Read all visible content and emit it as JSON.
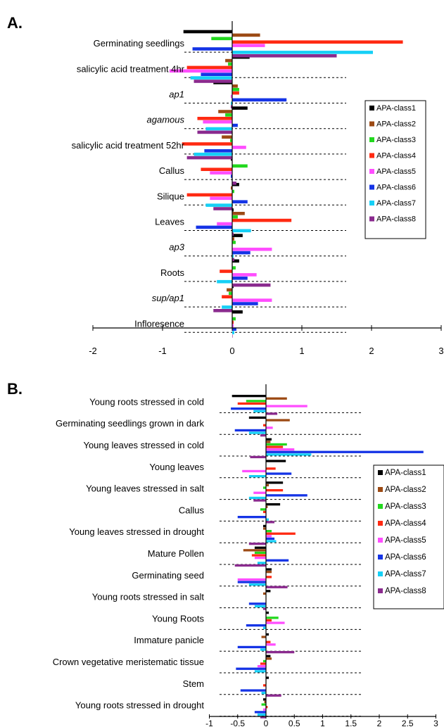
{
  "series_colors": [
    "#000000",
    "#9c4a14",
    "#22d81e",
    "#ff2a12",
    "#ff4dff",
    "#1534e6",
    "#16d0f6",
    "#8a2a8e"
  ],
  "chart_data": [
    {
      "panel_label": "A.",
      "type": "bar",
      "orientation": "horizontal",
      "xlim": [
        -2,
        3
      ],
      "xticks": [
        "-2",
        "-1",
        "0",
        "1",
        "2",
        "3"
      ],
      "grid": false,
      "legend_position": "right",
      "categories": [
        "Germinating seedlings",
        "salicylic acid treatment 4hr",
        "ap1",
        "agamous",
        "salicylic acid treatment 52hr",
        "Callus",
        "Silique",
        "Leaves",
        "ap3",
        "Roots",
        "sup/ap1",
        "Infloresence"
      ],
      "italic_categories": [
        "ap1",
        "agamous",
        "ap3",
        "sup/ap1"
      ],
      "series": [
        {
          "name": "APA-class1",
          "values": [
            -0.7,
            0.25,
            -0.27,
            0.22,
            0.0,
            -0.02,
            0.1,
            0.02,
            0.15,
            0.1,
            0.02,
            0.15
          ]
        },
        {
          "name": "APA-class2",
          "values": [
            0.4,
            -0.1,
            0.08,
            -0.2,
            -0.15,
            0.0,
            -0.02,
            0.18,
            0.03,
            0.0,
            -0.08,
            0.0
          ]
        },
        {
          "name": "APA-class3",
          "values": [
            -0.3,
            -0.06,
            0.1,
            -0.1,
            -0.03,
            0.22,
            0.03,
            0.08,
            0.05,
            0.05,
            -0.05,
            0.05
          ]
        },
        {
          "name": "APA-class4",
          "values": [
            2.45,
            -0.65,
            0.1,
            -0.5,
            -0.72,
            -0.45,
            -0.65,
            0.85,
            0.0,
            -0.18,
            -0.15,
            0.02
          ]
        },
        {
          "name": "APA-class5",
          "values": [
            0.47,
            -0.9,
            -0.02,
            -0.42,
            0.2,
            -0.32,
            -0.32,
            -0.22,
            0.57,
            0.35,
            0.57,
            0.02
          ]
        },
        {
          "name": "APA-class6",
          "values": [
            -0.57,
            -0.45,
            0.78,
            0.08,
            -0.4,
            -0.02,
            0.22,
            -0.52,
            0.26,
            0.22,
            0.37,
            0.06
          ]
        },
        {
          "name": "APA-class7",
          "values": [
            2.02,
            -0.6,
            -0.02,
            -0.38,
            -0.55,
            0.0,
            -0.38,
            0.27,
            0.02,
            -0.22,
            -0.15,
            0.03
          ]
        },
        {
          "name": "APA-class8",
          "values": [
            1.5,
            -0.55,
            -0.02,
            -0.5,
            -0.65,
            0.06,
            -0.27,
            0.02,
            0.03,
            0.55,
            -0.27,
            0.0
          ]
        }
      ]
    },
    {
      "panel_label": "B.",
      "type": "bar",
      "orientation": "horizontal",
      "xlim": [
        -1,
        3
      ],
      "xticks": [
        "-1",
        "-0.5",
        "0",
        "0.5",
        "1",
        "1.5",
        "2",
        "2.5",
        "3"
      ],
      "grid": false,
      "legend_position": "right",
      "categories": [
        "Young roots stressed in cold",
        "Germinating seedlings grown in dark",
        "Young leaves stressed in cold",
        "Young leaves",
        "Young leaves stressed in salt",
        "Callus",
        "Young leaves stressed in drought",
        "Mature Pollen",
        "Germinating seed",
        "Young roots stressed in salt",
        "Young Roots",
        "Immature panicle",
        "Crown vegetative meristematic tissue",
        "Stem",
        "Young roots stressed in drought"
      ],
      "series": [
        {
          "name": "APA-class1",
          "values": [
            -0.6,
            -0.3,
            0.1,
            0.35,
            0.3,
            0.25,
            -0.05,
            -0.2,
            0.1,
            0.08,
            0.05,
            0.05,
            0.08,
            0.05,
            -0.05
          ]
        },
        {
          "name": "APA-class2",
          "values": [
            0.37,
            0.42,
            0.08,
            0.0,
            0.05,
            0.03,
            -0.05,
            -0.4,
            0.1,
            -0.05,
            0.0,
            -0.08,
            0.1,
            0.0,
            -0.03
          ]
        },
        {
          "name": "APA-class3",
          "values": [
            -0.35,
            0.0,
            0.37,
            0.0,
            -0.05,
            -0.1,
            0.1,
            -0.2,
            0.0,
            0.0,
            0.22,
            0.0,
            -0.05,
            0.0,
            -0.08
          ]
        },
        {
          "name": "APA-class4",
          "values": [
            -0.5,
            -0.05,
            0.3,
            0.17,
            0.3,
            -0.05,
            0.52,
            -0.25,
            0.1,
            0.0,
            0.1,
            0.08,
            -0.1,
            -0.05,
            0.03
          ]
        },
        {
          "name": "APA-class5",
          "values": [
            0.73,
            0.12,
            0.5,
            -0.42,
            -0.22,
            0.0,
            0.1,
            -0.2,
            -0.5,
            0.0,
            0.33,
            0.17,
            -0.15,
            0.0,
            -0.05
          ]
        },
        {
          "name": "APA-class6",
          "values": [
            -0.62,
            -0.55,
            2.78,
            0.45,
            0.73,
            -0.5,
            0.15,
            0.4,
            -0.5,
            -0.3,
            -0.35,
            -0.5,
            -0.53,
            -0.45,
            -0.2
          ]
        },
        {
          "name": "APA-class7",
          "values": [
            -0.22,
            -0.3,
            0.8,
            -0.3,
            -0.3,
            0.05,
            0.18,
            -0.15,
            -0.3,
            -0.2,
            -0.05,
            -0.1,
            -0.2,
            -0.08,
            -0.15
          ]
        },
        {
          "name": "APA-class8",
          "values": [
            0.2,
            -0.1,
            -0.28,
            0.0,
            -0.22,
            0.15,
            -0.3,
            -0.55,
            0.38,
            -0.05,
            0.0,
            0.5,
            0.0,
            0.27,
            -0.1
          ]
        }
      ]
    }
  ]
}
